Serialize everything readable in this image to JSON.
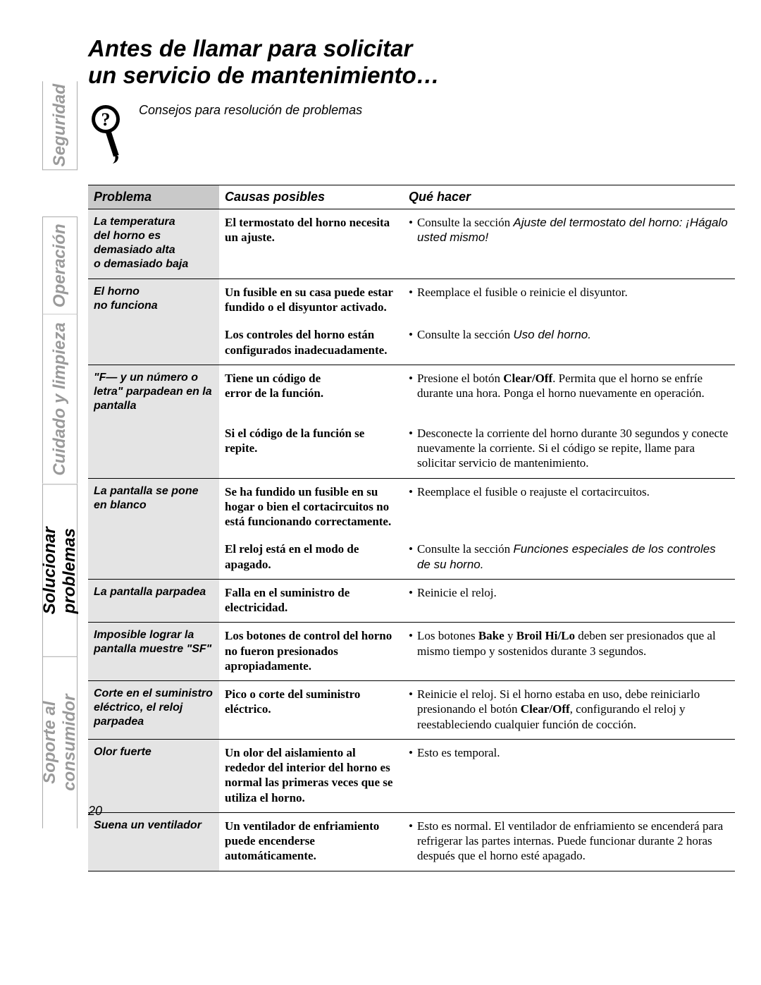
{
  "heading_line1": "Antes de llamar para solicitar",
  "heading_line2": "un servicio de mantenimiento…",
  "tip_text": "Consejos para resolución de problemas",
  "page_number": "20",
  "side_tabs": {
    "seguridad": "Seguridad",
    "operacion": "Operación",
    "cuidado": "Cuidado y limpieza",
    "solucionar": "Solucionar problemas",
    "soporte": "Soporte al consumidor"
  },
  "headers": {
    "problema": "Problema",
    "causas": "Causas posibles",
    "que_hacer": "Qué hacer"
  },
  "colors": {
    "header_gray": "#c9c9c9",
    "cell_gray": "#e4e4e4",
    "inactive_tab": "#9a9a9a",
    "text": "#000000",
    "background": "#ffffff",
    "border": "#000000"
  },
  "fonts": {
    "heading_family": "Arial",
    "heading_size_pt": 25,
    "body_family": "Georgia",
    "body_size_pt": 13,
    "tab_size_pt": 18
  },
  "rows": [
    {
      "problem": "La temperatura\ndel horno es\ndemasiado alta\no demasiado baja",
      "cause": "El termostato del horno necesita un ajuste.",
      "do_pre": "Consulte la sección ",
      "do_ital": "Ajuste del termostato del horno: ¡Hágalo usted mismo!",
      "do_post": "",
      "section_end": true
    },
    {
      "problem": "El horno\nno funciona",
      "cause": "Un fusible en su casa puede estar fundido o el disyuntor activado.",
      "do_pre": "Reemplace el fusible o reinicie el disyuntor.",
      "do_ital": "",
      "do_post": ""
    },
    {
      "problem": "",
      "cause": "Los controles del horno están configurados inadecuadamente.",
      "do_pre": "Consulte la sección ",
      "do_ital": "Uso del horno.",
      "do_post": "",
      "section_end": true
    },
    {
      "problem": "\"F— y un número o letra\" parpadean en la pantalla",
      "cause": "Tiene un código de\nerror de la función.",
      "do_pre": "Presione el botón ",
      "do_bold": "Clear/Off",
      "do_post": ". Permita que el horno se enfríe durante una hora. Ponga el horno nuevamente en operación."
    },
    {
      "problem": "",
      "cause": "Si el código de la función se repite.",
      "do_pre": "Desconecte la corriente del horno durante 30 segundos y conecte nuevamente la corriente. Si el código se repite, llame para solicitar servicio de mantenimiento.",
      "do_ital": "",
      "do_post": "",
      "section_end": true
    },
    {
      "problem": "La pantalla se pone en blanco",
      "cause": "Se ha fundido un fusible en su hogar o bien el cortacircuitos no está funcionando correctamente.",
      "do_pre": "Reemplace el fusible o reajuste el cortacircuitos.",
      "do_ital": "",
      "do_post": ""
    },
    {
      "problem": "",
      "cause": "El reloj está en el modo de apagado.",
      "do_pre": "Consulte la sección ",
      "do_ital": "Funciones especiales de los controles de su horno.",
      "do_post": "",
      "section_end": true
    },
    {
      "problem": "La pantalla parpadea",
      "cause": "Falla en el suministro de electricidad.",
      "do_pre": "Reinicie el reloj.",
      "do_ital": "",
      "do_post": "",
      "section_end": true
    },
    {
      "problem": "Imposible lograr la pantalla muestre \"SF\"",
      "cause": "Los botones de control del horno no fueron presionados apropiadamente.",
      "do_pre": "Los botones ",
      "do_bold": "Bake",
      "do_mid": " y ",
      "do_bold2": "Broil Hi/Lo",
      "do_post": " deben ser presionados que al mismo tiempo y sostenidos durante 3 segundos.",
      "section_end": true
    },
    {
      "problem": "Corte en el suministro eléctrico, el reloj parpadea",
      "cause": "Pico o corte del suministro eléctrico.",
      "do_pre": "Reinicie el reloj. Si el horno estaba en uso, debe reiniciarlo presionando el botón ",
      "do_bold": "Clear/Off",
      "do_post": ", configurando el reloj y reestableciendo cualquier función de cocción.",
      "section_end": true
    },
    {
      "problem": "Olor fuerte",
      "cause": "Un olor del aislamiento al rededor del interior del horno es normal las primeras veces que se utiliza el horno.",
      "do_pre": "Esto es temporal.",
      "do_ital": "",
      "do_post": "",
      "section_end": true
    },
    {
      "problem": "Suena un ventilador",
      "cause": "Un ventilador de enfriamiento puede encenderse automáticamente.",
      "do_pre": "Esto es normal. El ventilador de enfriamiento se encenderá para refrigerar las partes internas. Puede funcionar durante 2 horas después que el horno esté apagado.",
      "do_ital": "",
      "do_post": "",
      "section_end": true
    }
  ]
}
